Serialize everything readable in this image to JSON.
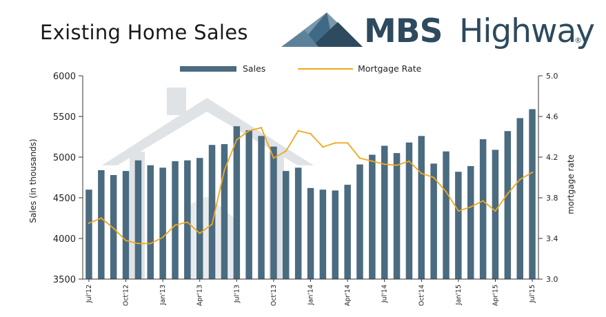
{
  "header": {
    "title": "Existing Home Sales",
    "logo_strong": "MBS",
    "logo_light": "Highway",
    "logo_mark": "®"
  },
  "colors": {
    "bar": "#4a6b80",
    "line": "#f2a71b",
    "watermark": "#dfe3e6",
    "logo_dark": "#2d4a5e",
    "logo_mid": "#3f6a86",
    "logo_light": "#7a98ab"
  },
  "chart_data": {
    "type": "bar",
    "title": "Existing Home Sales",
    "legend_position": "top-center",
    "grid": false,
    "xlabel": "",
    "x_tick_labels": [
      "Jul'12",
      "Oct'12",
      "Jan'13",
      "Apr'13",
      "Jul'13",
      "Oct'13",
      "Jan'14",
      "Apr'14",
      "Jul'14",
      "Oct'14",
      "Jan'15",
      "Apr'15",
      "Jul'15"
    ],
    "x_tick_every": 3,
    "categories": [
      "Jul'12",
      "Aug'12",
      "Sep'12",
      "Oct'12",
      "Nov'12",
      "Dec'12",
      "Jan'13",
      "Feb'13",
      "Mar'13",
      "Apr'13",
      "May'13",
      "Jun'13",
      "Jul'13",
      "Aug'13",
      "Sep'13",
      "Oct'13",
      "Nov'13",
      "Dec'13",
      "Jan'14",
      "Feb'14",
      "Mar'14",
      "Apr'14",
      "May'14",
      "Jun'14",
      "Jul'14",
      "Aug'14",
      "Sep'14",
      "Oct'14",
      "Nov'14",
      "Dec'14",
      "Jan'15",
      "Feb'15",
      "Mar'15",
      "Apr'15",
      "May'15",
      "Jun'15",
      "Jul'15"
    ],
    "series": [
      {
        "name": "Sales",
        "type": "bar",
        "axis": "left",
        "values": [
          4600,
          4840,
          4780,
          4830,
          4960,
          4900,
          4870,
          4950,
          4960,
          4990,
          5150,
          5160,
          5380,
          5330,
          5260,
          5130,
          4830,
          4870,
          4620,
          4600,
          4590,
          4660,
          4910,
          5030,
          5140,
          5050,
          5180,
          5260,
          4920,
          5070,
          4820,
          4890,
          5220,
          5090,
          5320,
          5480,
          5590
        ]
      },
      {
        "name": "Mortgage Rate",
        "type": "line",
        "axis": "right",
        "values": [
          3.55,
          3.6,
          3.5,
          3.38,
          3.35,
          3.35,
          3.41,
          3.53,
          3.56,
          3.45,
          3.54,
          4.07,
          4.37,
          4.46,
          4.49,
          4.19,
          4.26,
          4.46,
          4.43,
          4.3,
          4.34,
          4.34,
          4.19,
          4.16,
          4.13,
          4.12,
          4.16,
          4.04,
          4.0,
          3.86,
          3.67,
          3.71,
          3.77,
          3.67,
          3.84,
          3.98,
          4.05
        ]
      }
    ],
    "y_left": {
      "label": "Sales (in thousands)",
      "min": 3500,
      "max": 6000,
      "ticks": [
        3500,
        4000,
        4500,
        5000,
        5500,
        6000
      ]
    },
    "y_right": {
      "label": "mortgage rate",
      "min": 3.0,
      "max": 5.0,
      "ticks": [
        "3.0",
        "3.4",
        "3.8",
        "4.2",
        "4.6",
        "5.0"
      ]
    }
  }
}
